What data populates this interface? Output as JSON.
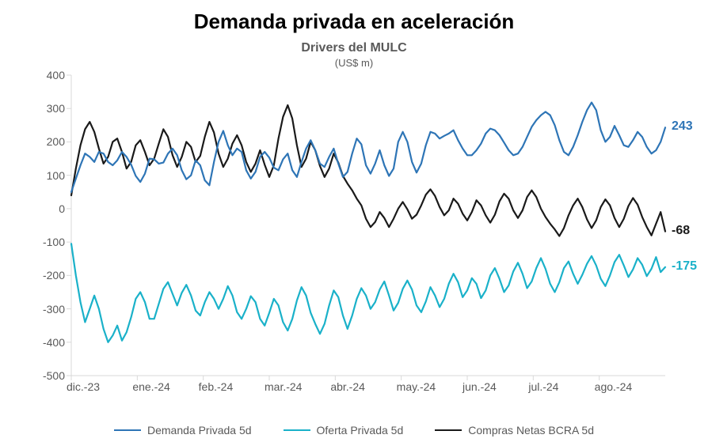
{
  "title": {
    "text": "Demanda privada en aceleración",
    "fontsize": 26,
    "color": "#000000",
    "weight": "700"
  },
  "subtitle": {
    "text": "Drivers del MULC",
    "fontsize": 16,
    "color": "#595959",
    "weight": "700"
  },
  "unit_label": {
    "text": "(US$ m)",
    "fontsize": 13,
    "color": "#595959"
  },
  "chart": {
    "type": "line",
    "background_color": "#ffffff",
    "axis_color": "#d9d9d9",
    "tick_label_color": "#595959",
    "tick_label_fontsize": 14,
    "line_width": 2.2,
    "y": {
      "min": -500,
      "max": 400,
      "ticks": [
        -500,
        -400,
        -300,
        -200,
        -100,
        0,
        100,
        200,
        300,
        400
      ],
      "labels": [
        "-500",
        "-400",
        "-300",
        "-200",
        "-100",
        "0",
        "100",
        "200",
        "300",
        "400"
      ]
    },
    "x": {
      "min": 0,
      "max": 270,
      "categories": [
        "dic.-23",
        "ene.-24",
        "feb.-24",
        "mar.-24",
        "abr.-24",
        "may.-24",
        "jun.-24",
        "jul.-24",
        "ago.-24"
      ],
      "category_positions": [
        0,
        30,
        60,
        90,
        120,
        150,
        180,
        210,
        240
      ]
    },
    "series": {
      "demanda": {
        "label": "Demanda Privada 5d",
        "color": "#2e75b6",
        "end_label": "243",
        "values": [
          50,
          90,
          130,
          165,
          155,
          140,
          170,
          165,
          140,
          130,
          145,
          170,
          155,
          132,
          98,
          80,
          105,
          150,
          148,
          135,
          138,
          165,
          180,
          160,
          115,
          88,
          100,
          145,
          130,
          85,
          70,
          140,
          200,
          233,
          190,
          160,
          180,
          170,
          115,
          90,
          110,
          155,
          170,
          153,
          123,
          115,
          148,
          165,
          115,
          95,
          140,
          180,
          205,
          175,
          135,
          125,
          155,
          180,
          135,
          95,
          110,
          165,
          210,
          193,
          130,
          105,
          135,
          175,
          130,
          98,
          120,
          200,
          230,
          200,
          140,
          108,
          135,
          190,
          230,
          225,
          210,
          218,
          225,
          235,
          205,
          180,
          160,
          160,
          175,
          195,
          225,
          240,
          235,
          220,
          198,
          175,
          160,
          165,
          185,
          215,
          245,
          265,
          280,
          290,
          280,
          250,
          205,
          170,
          160,
          185,
          220,
          260,
          295,
          318,
          295,
          235,
          200,
          215,
          248,
          220,
          190,
          185,
          205,
          230,
          215,
          185,
          165,
          175,
          200,
          243
        ]
      },
      "oferta": {
        "label": "Oferta Privada 5d",
        "color": "#1ab1c9",
        "end_label": "-175",
        "values": [
          -105,
          -200,
          -280,
          -340,
          -300,
          -260,
          -300,
          -360,
          -400,
          -380,
          -350,
          -395,
          -370,
          -325,
          -270,
          -250,
          -280,
          -330,
          -330,
          -285,
          -240,
          -220,
          -255,
          -290,
          -252,
          -228,
          -260,
          -305,
          -320,
          -280,
          -250,
          -270,
          -300,
          -270,
          -232,
          -260,
          -310,
          -330,
          -300,
          -262,
          -280,
          -330,
          -350,
          -312,
          -270,
          -290,
          -340,
          -365,
          -330,
          -275,
          -235,
          -260,
          -312,
          -345,
          -375,
          -345,
          -290,
          -245,
          -265,
          -320,
          -360,
          -320,
          -270,
          -238,
          -260,
          -300,
          -280,
          -242,
          -218,
          -260,
          -305,
          -282,
          -240,
          -215,
          -242,
          -290,
          -310,
          -278,
          -235,
          -260,
          -295,
          -270,
          -225,
          -195,
          -220,
          -265,
          -245,
          -208,
          -225,
          -268,
          -245,
          -200,
          -178,
          -210,
          -250,
          -230,
          -188,
          -162,
          -195,
          -238,
          -218,
          -178,
          -148,
          -180,
          -225,
          -250,
          -220,
          -178,
          -158,
          -195,
          -225,
          -198,
          -165,
          -142,
          -170,
          -210,
          -232,
          -200,
          -160,
          -138,
          -170,
          -205,
          -182,
          -148,
          -168,
          -202,
          -180,
          -145,
          -190,
          -175
        ]
      },
      "compras": {
        "label": "Compras Netas BCRA  5d",
        "color": "#1a1a1a",
        "end_label": "-68",
        "values": [
          40,
          120,
          190,
          238,
          260,
          230,
          180,
          135,
          155,
          200,
          210,
          170,
          120,
          140,
          190,
          205,
          170,
          130,
          150,
          195,
          238,
          215,
          160,
          125,
          155,
          200,
          185,
          140,
          158,
          215,
          260,
          228,
          165,
          125,
          150,
          195,
          220,
          190,
          140,
          110,
          135,
          175,
          132,
          95,
          130,
          210,
          275,
          310,
          270,
          190,
          125,
          150,
          200,
          175,
          128,
          95,
          120,
          165,
          138,
          98,
          75,
          55,
          30,
          10,
          -30,
          -55,
          -40,
          -10,
          -28,
          -55,
          -30,
          0,
          20,
          -2,
          -30,
          -18,
          10,
          42,
          58,
          38,
          5,
          -20,
          -5,
          30,
          15,
          -15,
          -35,
          -10,
          25,
          10,
          -20,
          -42,
          -18,
          22,
          45,
          30,
          -5,
          -28,
          -5,
          35,
          55,
          35,
          0,
          -25,
          -45,
          -62,
          -82,
          -58,
          -20,
          10,
          30,
          5,
          -32,
          -58,
          -35,
          5,
          28,
          10,
          -28,
          -55,
          -30,
          8,
          32,
          12,
          -25,
          -55,
          -80,
          -45,
          -10,
          -68
        ]
      }
    },
    "n_points": 130
  },
  "legend": {
    "fontsize": 14,
    "color": "#595959",
    "swatch_width": 34,
    "line_width": 2.5
  }
}
